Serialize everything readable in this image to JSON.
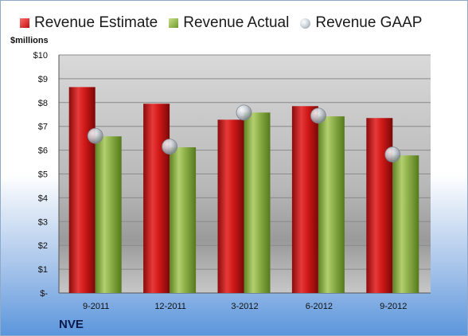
{
  "company_label": "NVE",
  "chart_data": {
    "type": "bar",
    "ylabel": "$millions",
    "categories": [
      "9-2011",
      "12-2011",
      "3-2012",
      "6-2012",
      "9-2012"
    ],
    "y_tick_labels": [
      "$-",
      "$1",
      "$2",
      "$3",
      "$4",
      "$5",
      "$6",
      "$7",
      "$8",
      "$9",
      "$10"
    ],
    "ylim": [
      0,
      10
    ],
    "grid": true,
    "legend_position": "top",
    "series": [
      {
        "name": "Revenue Estimate",
        "kind": "bar",
        "color": "#d11a1a",
        "values": [
          8.65,
          7.95,
          7.28,
          7.85,
          7.35
        ]
      },
      {
        "name": "Revenue Actual",
        "kind": "bar",
        "color": "#8db04a",
        "values": [
          6.58,
          6.12,
          7.58,
          7.42,
          5.78
        ]
      },
      {
        "name": "Revenue GAAP",
        "kind": "marker",
        "color": "#b8bec6",
        "values": [
          6.6,
          6.15,
          7.58,
          7.45,
          5.82
        ]
      }
    ]
  }
}
